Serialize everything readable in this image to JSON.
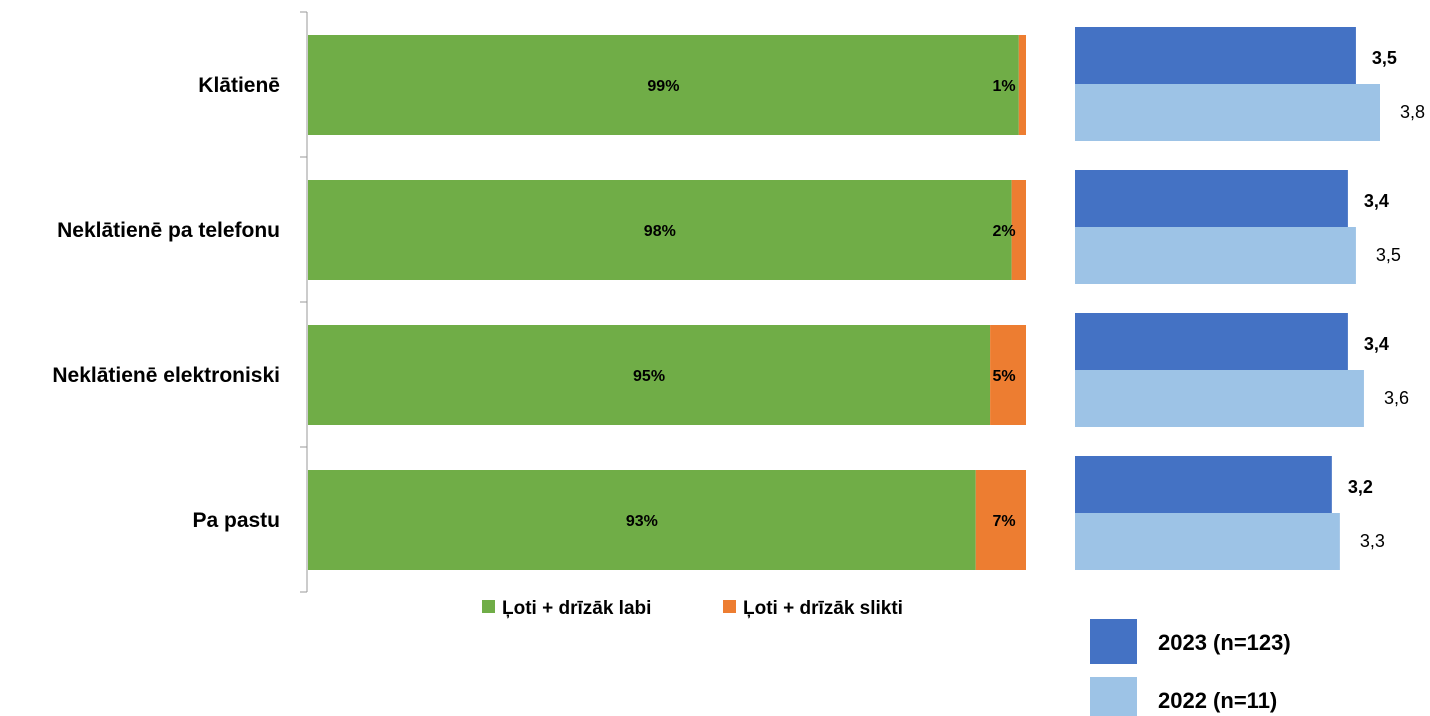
{
  "chart_data": [
    {
      "type": "bar",
      "orientation": "horizontal",
      "stacked": true,
      "categories": [
        "Klātienē",
        "Neklātienē pa telefonu",
        "Neklātienē elektroniski",
        "Pa pastu"
      ],
      "series": [
        {
          "name": "Ļoti + drīzāk labi",
          "values": [
            99,
            98,
            95,
            93
          ],
          "labels": [
            "99%",
            "98%",
            "95%",
            "93%"
          ],
          "color": "#70AD47"
        },
        {
          "name": "Ļoti + drīzāk slikti",
          "values": [
            1,
            2,
            5,
            7
          ],
          "labels": [
            "1%",
            "2%",
            "5%",
            "7%"
          ],
          "color": "#ED7D31"
        }
      ],
      "xlim": [
        0,
        100
      ],
      "legend": "bottom"
    },
    {
      "type": "bar",
      "orientation": "horizontal",
      "categories": [
        "Klātienē",
        "Neklātienē pa telefonu",
        "Neklātienē elektroniski",
        "Pa pastu"
      ],
      "series": [
        {
          "name": "2023 (n=123)",
          "values": [
            3.5,
            3.4,
            3.4,
            3.2
          ],
          "labels": [
            "3,5",
            "3,4",
            "3,4",
            "3,2"
          ],
          "color": "#4472C4"
        },
        {
          "name": "2022 (n=11)",
          "values": [
            3.8,
            3.5,
            3.6,
            3.3
          ],
          "labels": [
            "3,8",
            "3,5",
            "3,6",
            "3,3"
          ],
          "color": "#9DC3E6"
        }
      ],
      "xlim": [
        0,
        4
      ],
      "legend": "bottom-right"
    }
  ]
}
